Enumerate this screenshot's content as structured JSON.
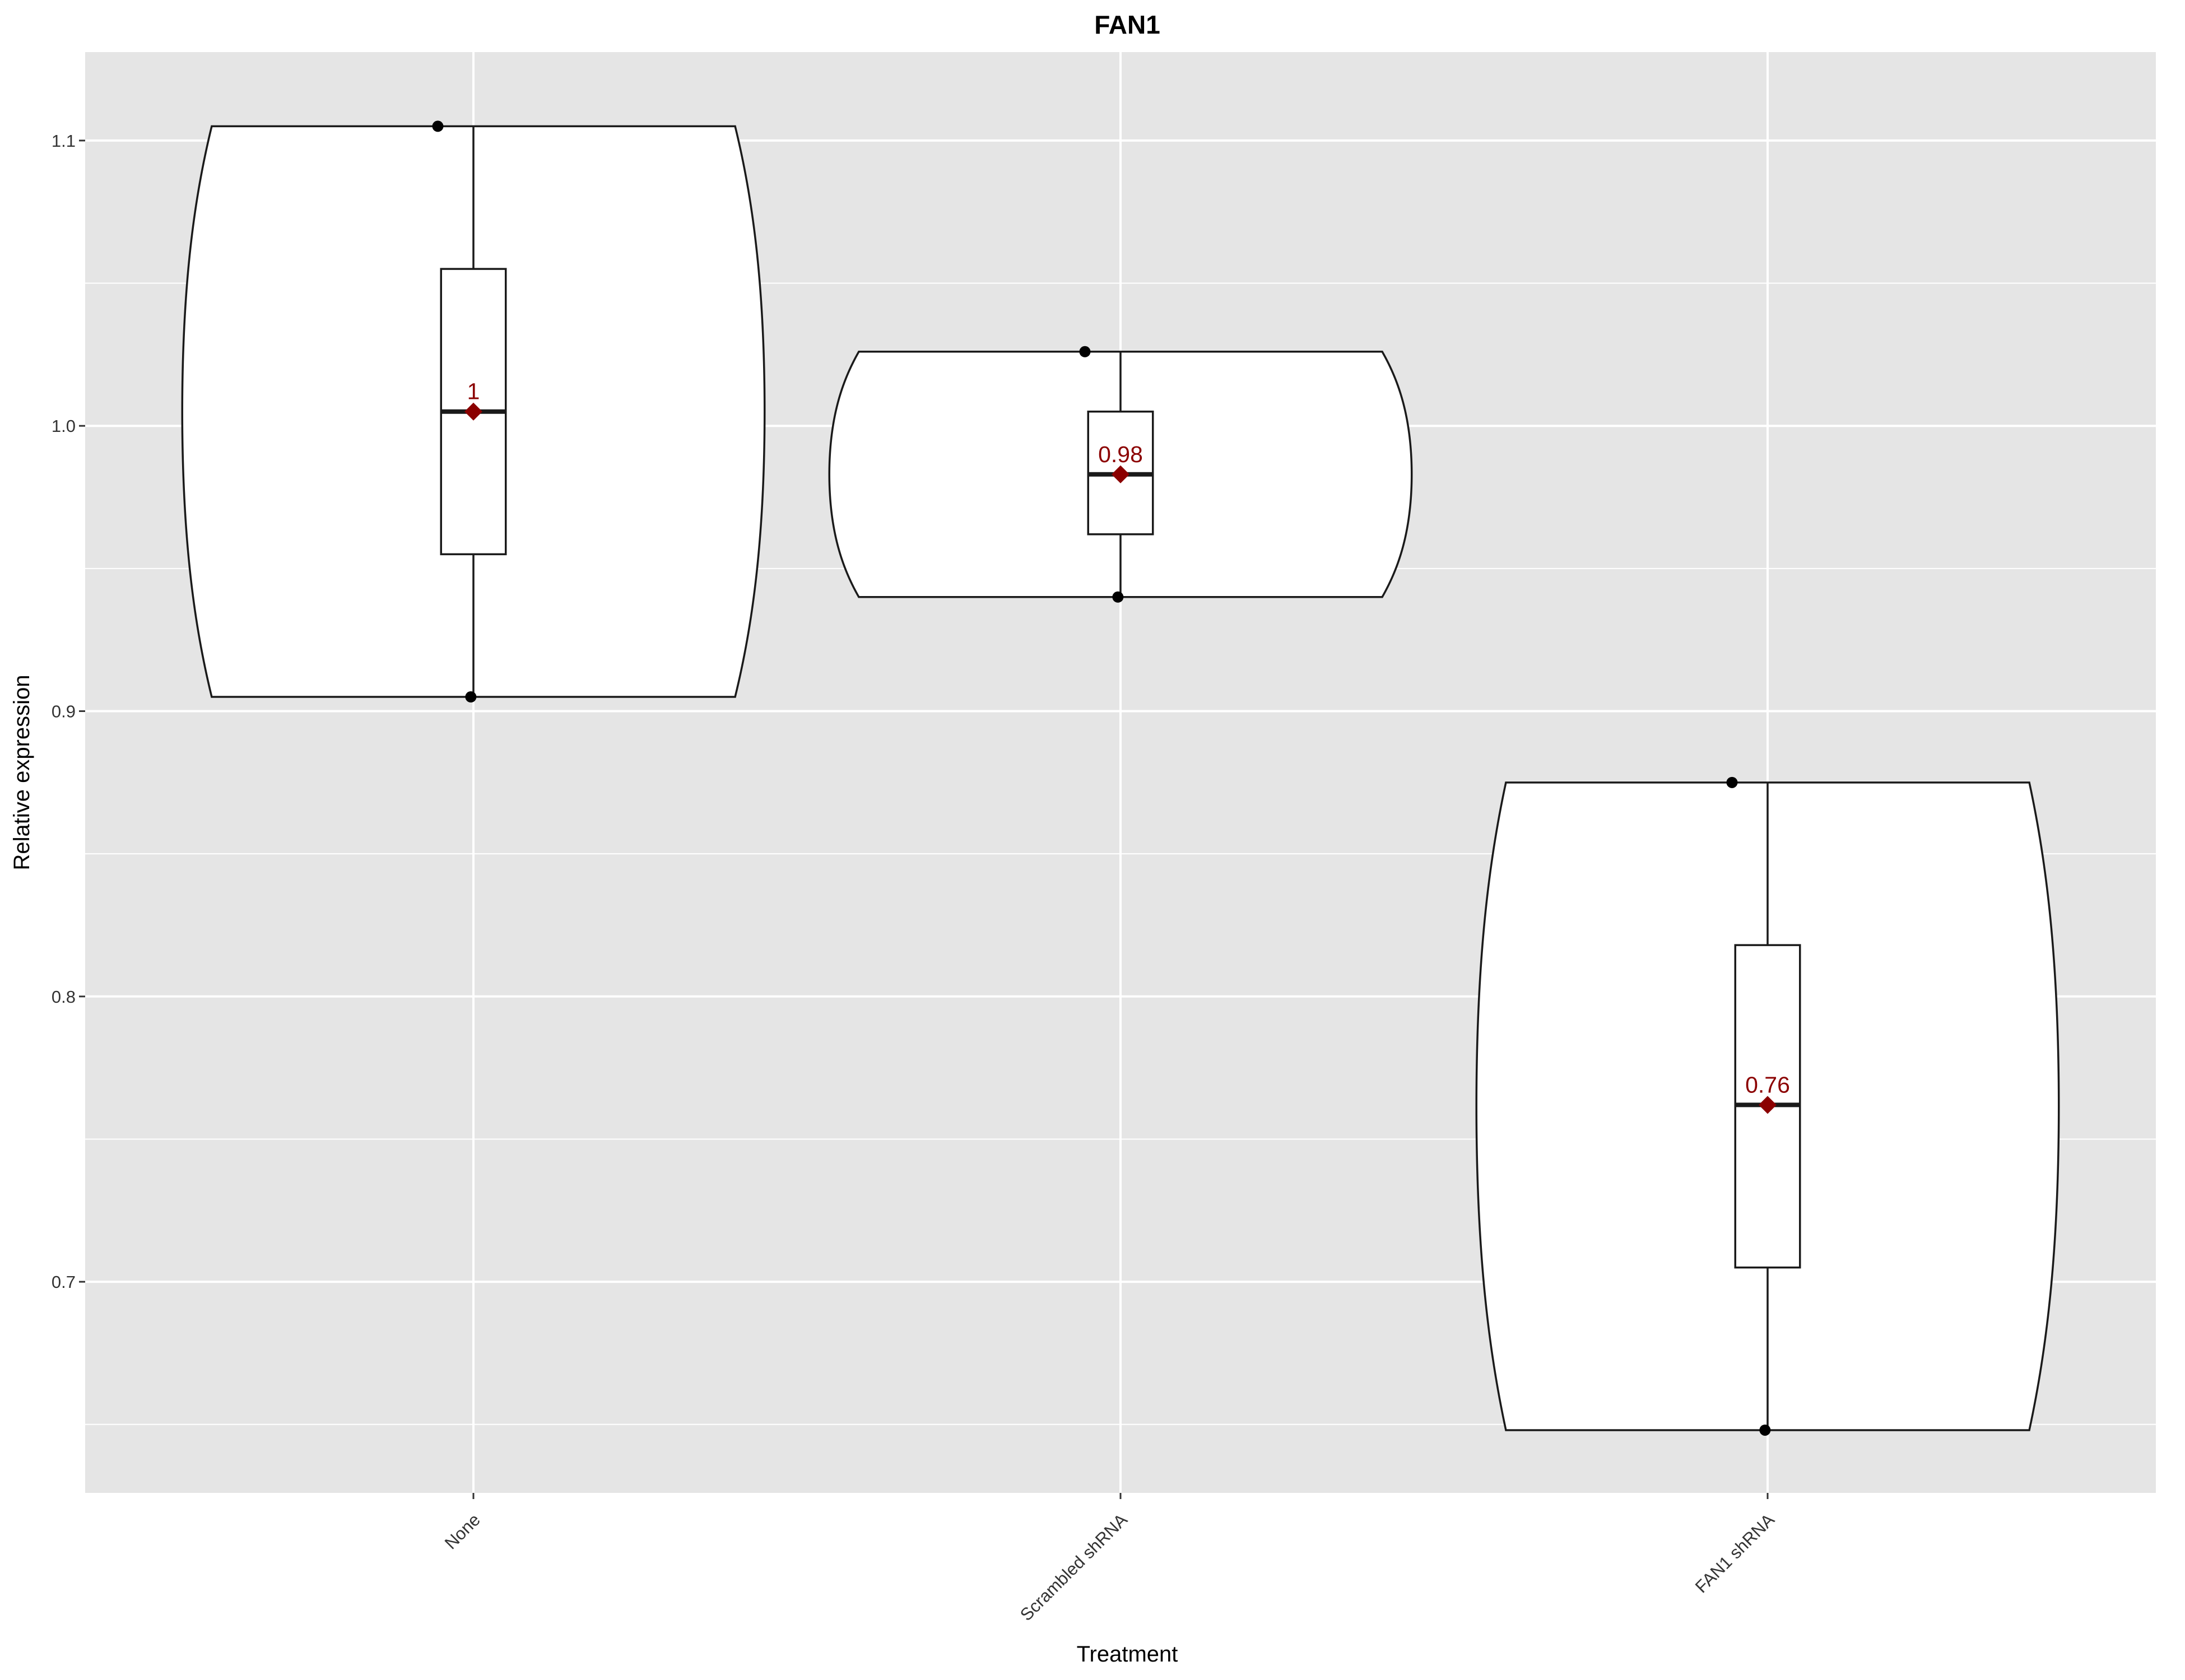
{
  "chart_data": {
    "type": "violin",
    "title": "FAN1",
    "xlabel": "Treatment",
    "ylabel": "Relative expression",
    "categories": [
      "None",
      "Scrambled shRNA",
      "FAN1 shRNA"
    ],
    "yticks": [
      "0.7",
      "0.8",
      "0.9",
      "1.0",
      "1.1"
    ],
    "ylim": [
      0.626,
      1.131
    ],
    "grid": true,
    "groups": [
      {
        "category": "None",
        "points": [
          1.105,
          0.905
        ],
        "box": {
          "min": 0.905,
          "q1": 0.955,
          "median": 1.005,
          "q3": 1.055,
          "max": 1.105
        },
        "mean": 1.005,
        "mean_label": "1"
      },
      {
        "category": "Scrambled shRNA",
        "points": [
          1.026,
          0.94
        ],
        "box": {
          "min": 0.94,
          "q1": 0.962,
          "median": 0.983,
          "q3": 1.005,
          "max": 1.026
        },
        "mean": 0.983,
        "mean_label": "0.98"
      },
      {
        "category": "FAN1 shRNA",
        "points": [
          0.875,
          0.648
        ],
        "box": {
          "min": 0.648,
          "q1": 0.705,
          "median": 0.762,
          "q3": 0.818,
          "max": 0.875
        },
        "mean": 0.762,
        "mean_label": "0.76"
      }
    ],
    "colors": {
      "panel": "#E5E5E5",
      "grid": "#FFFFFF",
      "violin_fill": "#FFFFFF",
      "outline": "#1A1A1A",
      "mean": "#8B0000",
      "point": "#000000"
    }
  }
}
